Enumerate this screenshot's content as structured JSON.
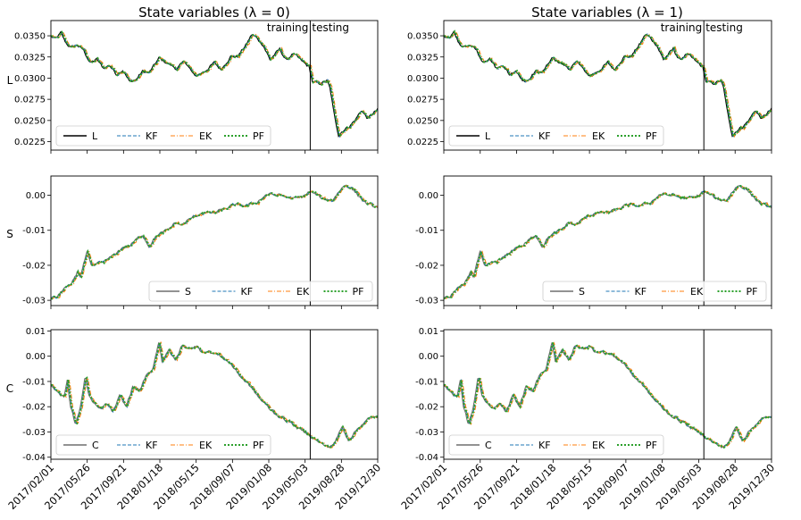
{
  "chart_data": {
    "type": "line",
    "figure_title_prefix": "State variables",
    "x_dates": [
      "2017/02/01",
      "2017/05/26",
      "2017/09/21",
      "2018/01/18",
      "2018/05/15",
      "2018/09/07",
      "2019/01/08",
      "2019/05/03",
      "2019/08/28",
      "2019/12/30"
    ],
    "split_date": "2019/04/01",
    "split_labels": {
      "left": "training",
      "right": "testing"
    },
    "series_names": [
      "KF",
      "EK",
      "PF"
    ],
    "series_colors": {
      "truth_L": "#000000",
      "truth_other": "#6f6f6f",
      "KF": "#1f77b4",
      "EK": "#ff7f0e",
      "PF": "#2ca02c"
    },
    "columns": [
      {
        "title": "State variables (λ = 0)",
        "lambda": "0"
      },
      {
        "title": "State variables (λ = 1)",
        "lambda": "1"
      }
    ],
    "rows": [
      {
        "ylabel": "L",
        "ylim": [
          0.0215,
          0.0368
        ],
        "yticks": [
          "0.0350",
          "0.0325",
          "0.0300",
          "0.0275",
          "0.0250",
          "0.0225"
        ],
        "ytick_values": [
          0.035,
          0.0325,
          0.03,
          0.0275,
          0.025,
          0.0225
        ],
        "legend": [
          "L",
          "KF",
          "EK",
          "PF"
        ],
        "legend_position": "lower-left",
        "knots": [
          [
            0,
            0.0349
          ],
          [
            0.015,
            0.0346
          ],
          [
            0.03,
            0.0353
          ],
          [
            0.045,
            0.0342
          ],
          [
            0.06,
            0.0336
          ],
          [
            0.08,
            0.0339
          ],
          [
            0.1,
            0.0333
          ],
          [
            0.12,
            0.0318
          ],
          [
            0.14,
            0.0322
          ],
          [
            0.16,
            0.0312
          ],
          [
            0.18,
            0.0315
          ],
          [
            0.2,
            0.0305
          ],
          [
            0.22,
            0.031
          ],
          [
            0.24,
            0.0296
          ],
          [
            0.26,
            0.0298
          ],
          [
            0.28,
            0.0308
          ],
          [
            0.3,
            0.0306
          ],
          [
            0.33,
            0.0323
          ],
          [
            0.36,
            0.0317
          ],
          [
            0.385,
            0.0311
          ],
          [
            0.41,
            0.032
          ],
          [
            0.44,
            0.0302
          ],
          [
            0.47,
            0.0308
          ],
          [
            0.5,
            0.0318
          ],
          [
            0.52,
            0.031
          ],
          [
            0.55,
            0.0326
          ],
          [
            0.57,
            0.0325
          ],
          [
            0.6,
            0.0341
          ],
          [
            0.615,
            0.0352
          ],
          [
            0.63,
            0.0347
          ],
          [
            0.65,
            0.0339
          ],
          [
            0.67,
            0.0322
          ],
          [
            0.7,
            0.0334
          ],
          [
            0.72,
            0.0321
          ],
          [
            0.74,
            0.0329
          ],
          [
            0.77,
            0.0319
          ],
          [
            0.79,
            0.0313
          ],
          [
            0.8,
            0.0296
          ],
          [
            0.82,
            0.0293
          ],
          [
            0.845,
            0.0297
          ],
          [
            0.855,
            0.0286
          ],
          [
            0.865,
            0.026
          ],
          [
            0.88,
            0.0233
          ],
          [
            0.895,
            0.0239
          ],
          [
            0.91,
            0.0242
          ],
          [
            0.93,
            0.025
          ],
          [
            0.95,
            0.0262
          ],
          [
            0.97,
            0.0252
          ],
          [
            0.985,
            0.0258
          ],
          [
            1,
            0.0263
          ]
        ]
      },
      {
        "ylabel": "S",
        "ylim": [
          -0.0315,
          0.0055
        ],
        "yticks": [
          "0.00",
          "-0.01",
          "-0.02",
          "-0.03"
        ],
        "ytick_values": [
          0,
          -0.01,
          -0.02,
          -0.03
        ],
        "legend": [
          "S",
          "KF",
          "EK",
          "PF"
        ],
        "legend_position": "lower-right",
        "knots": [
          [
            0,
            -0.0295
          ],
          [
            0.02,
            -0.029
          ],
          [
            0.04,
            -0.0265
          ],
          [
            0.06,
            -0.026
          ],
          [
            0.08,
            -0.022
          ],
          [
            0.09,
            -0.023
          ],
          [
            0.11,
            -0.0165
          ],
          [
            0.125,
            -0.0208
          ],
          [
            0.14,
            -0.0195
          ],
          [
            0.16,
            -0.019
          ],
          [
            0.18,
            -0.018
          ],
          [
            0.2,
            -0.0165
          ],
          [
            0.22,
            -0.0148
          ],
          [
            0.24,
            -0.0145
          ],
          [
            0.26,
            -0.0128
          ],
          [
            0.28,
            -0.0112
          ],
          [
            0.3,
            -0.0145
          ],
          [
            0.32,
            -0.0118
          ],
          [
            0.34,
            -0.0108
          ],
          [
            0.36,
            -0.0098
          ],
          [
            0.38,
            -0.0078
          ],
          [
            0.4,
            -0.0085
          ],
          [
            0.43,
            -0.0065
          ],
          [
            0.46,
            -0.005
          ],
          [
            0.5,
            -0.005
          ],
          [
            0.53,
            -0.004
          ],
          [
            0.56,
            -0.0028
          ],
          [
            0.6,
            -0.003
          ],
          [
            0.63,
            -0.002
          ],
          [
            0.66,
            0.0003
          ],
          [
            0.7,
            0
          ],
          [
            0.74,
            -0.001
          ],
          [
            0.77,
            -0.0005
          ],
          [
            0.79,
            0.001
          ],
          [
            0.81,
            0.0003
          ],
          [
            0.83,
            -0.001
          ],
          [
            0.86,
            -0.0015
          ],
          [
            0.88,
            0.001
          ],
          [
            0.9,
            0.003
          ],
          [
            0.92,
            0.002
          ],
          [
            0.94,
            0
          ],
          [
            0.96,
            -0.002
          ],
          [
            0.98,
            -0.003
          ],
          [
            1,
            -0.0035
          ]
        ]
      },
      {
        "ylabel": "C",
        "ylim": [
          -0.0408,
          0.0105
        ],
        "yticks": [
          "0.01",
          "0.00",
          "-0.01",
          "-0.02",
          "-0.03",
          "-0.04"
        ],
        "ytick_values": [
          0.01,
          0,
          -0.01,
          -0.02,
          -0.03,
          -0.04
        ],
        "legend": [
          "C",
          "KF",
          "EK",
          "PF"
        ],
        "legend_position": "lower-left",
        "knots": [
          [
            0,
            -0.012
          ],
          [
            0.02,
            -0.014
          ],
          [
            0.04,
            -0.016
          ],
          [
            0.05,
            -0.01
          ],
          [
            0.06,
            -0.02
          ],
          [
            0.075,
            -0.027
          ],
          [
            0.09,
            -0.02
          ],
          [
            0.105,
            -0.008
          ],
          [
            0.115,
            -0.015
          ],
          [
            0.13,
            -0.019
          ],
          [
            0.15,
            -0.021
          ],
          [
            0.17,
            -0.019
          ],
          [
            0.19,
            -0.022
          ],
          [
            0.21,
            -0.016
          ],
          [
            0.23,
            -0.02
          ],
          [
            0.25,
            -0.012
          ],
          [
            0.27,
            -0.014
          ],
          [
            0.29,
            -0.008
          ],
          [
            0.31,
            -0.006
          ],
          [
            0.33,
            0.006
          ],
          [
            0.34,
            -0.002
          ],
          [
            0.36,
            0.003
          ],
          [
            0.38,
            -0.002
          ],
          [
            0.4,
            0.004
          ],
          [
            0.42,
            0.003
          ],
          [
            0.44,
            0.004
          ],
          [
            0.46,
            0.002
          ],
          [
            0.48,
            0.002
          ],
          [
            0.5,
            0.001
          ],
          [
            0.52,
            0
          ],
          [
            0.55,
            -0.003
          ],
          [
            0.58,
            -0.008
          ],
          [
            0.61,
            -0.012
          ],
          [
            0.64,
            -0.017
          ],
          [
            0.67,
            -0.021
          ],
          [
            0.7,
            -0.024
          ],
          [
            0.73,
            -0.026
          ],
          [
            0.76,
            -0.029
          ],
          [
            0.79,
            -0.031
          ],
          [
            0.81,
            -0.033
          ],
          [
            0.83,
            -0.035
          ],
          [
            0.85,
            -0.036
          ],
          [
            0.87,
            -0.034
          ],
          [
            0.89,
            -0.028
          ],
          [
            0.91,
            -0.033
          ],
          [
            0.93,
            -0.03
          ],
          [
            0.95,
            -0.027
          ],
          [
            0.97,
            -0.025
          ],
          [
            0.99,
            -0.024
          ],
          [
            1,
            -0.024
          ]
        ]
      }
    ]
  }
}
